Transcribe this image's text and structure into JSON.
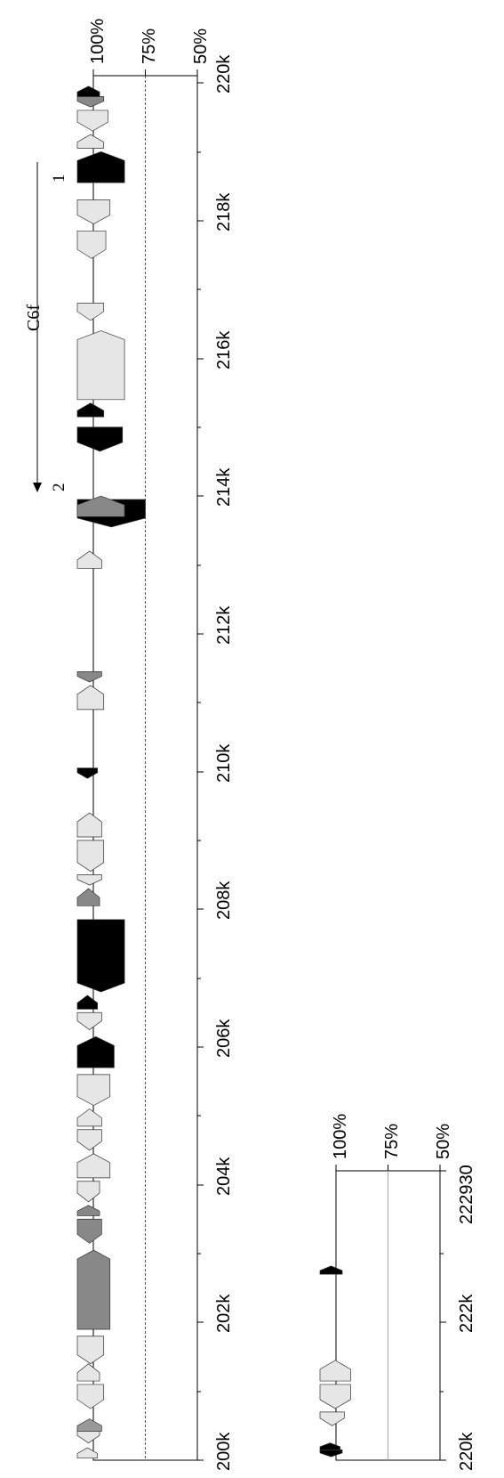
{
  "figure": {
    "main_panel": {
      "percent_ticks": [
        "100%",
        "75%",
        "50%"
      ],
      "position_ticks": [
        "200k",
        "202k",
        "204k",
        "206k",
        "208k",
        "210k",
        "212k",
        "214k",
        "216k",
        "218k",
        "220k"
      ],
      "cluster": {
        "name": "C6f",
        "start_marker": "1",
        "end_marker": "2"
      },
      "features": [
        {
          "pos_k": 200.03,
          "len_k": 0.15,
          "strand": "+",
          "color": "#e6e6e6",
          "level": 0.98
        },
        {
          "pos_k": 200.25,
          "len_k": 0.2,
          "strand": "-",
          "color": "#e6e6e6",
          "level": 0.97
        },
        {
          "pos_k": 200.42,
          "len_k": 0.18,
          "strand": "+",
          "color": "#999999",
          "level": 0.96
        },
        {
          "pos_k": 200.75,
          "len_k": 0.35,
          "strand": "-",
          "color": "#e6e6e6",
          "level": 0.95
        },
        {
          "pos_k": 201.15,
          "len_k": 0.25,
          "strand": "+",
          "color": "#e6e6e6",
          "level": 0.97
        },
        {
          "pos_k": 201.4,
          "len_k": 0.4,
          "strand": "-",
          "color": "#e6e6e6",
          "level": 0.95
        },
        {
          "pos_k": 201.9,
          "len_k": 1.15,
          "strand": "+",
          "color": "#888888",
          "level": 0.92
        },
        {
          "pos_k": 203.15,
          "len_k": 0.35,
          "strand": "-",
          "color": "#888888",
          "level": 0.96
        },
        {
          "pos_k": 203.55,
          "len_k": 0.15,
          "strand": "+",
          "color": "#888888",
          "level": 0.97
        },
        {
          "pos_k": 203.75,
          "len_k": 0.3,
          "strand": "-",
          "color": "#e6e6e6",
          "level": 0.97
        },
        {
          "pos_k": 204.1,
          "len_k": 0.35,
          "strand": "+",
          "color": "#e6e6e6",
          "level": 0.92
        },
        {
          "pos_k": 204.5,
          "len_k": 0.3,
          "strand": "-",
          "color": "#e6e6e6",
          "level": 0.96
        },
        {
          "pos_k": 204.85,
          "len_k": 0.25,
          "strand": "+",
          "color": "#e6e6e6",
          "level": 0.96
        },
        {
          "pos_k": 205.15,
          "len_k": 0.45,
          "strand": "-",
          "color": "#e6e6e6",
          "level": 0.92
        },
        {
          "pos_k": 205.7,
          "len_k": 0.45,
          "strand": "+",
          "color": "#000000",
          "level": 0.9
        },
        {
          "pos_k": 206.25,
          "len_k": 0.25,
          "strand": "-",
          "color": "#e6e6e6",
          "level": 0.96
        },
        {
          "pos_k": 206.55,
          "len_k": 0.2,
          "strand": "+",
          "color": "#000000",
          "level": 0.98
        },
        {
          "pos_k": 206.8,
          "len_k": 1.05,
          "strand": "-",
          "color": "#000000",
          "level": 0.85
        },
        {
          "pos_k": 208.05,
          "len_k": 0.25,
          "strand": "+",
          "color": "#888888",
          "level": 0.97
        },
        {
          "pos_k": 208.35,
          "len_k": 0.15,
          "strand": "-",
          "color": "#e6e6e6",
          "level": 0.96
        },
        {
          "pos_k": 208.55,
          "len_k": 0.45,
          "strand": "-",
          "color": "#e6e6e6",
          "level": 0.95
        },
        {
          "pos_k": 209.05,
          "len_k": 0.35,
          "strand": "+",
          "color": "#e6e6e6",
          "level": 0.96
        },
        {
          "pos_k": 209.9,
          "len_k": 0.15,
          "strand": "-",
          "color": "#000000",
          "level": 0.98
        },
        {
          "pos_k": 210.9,
          "len_k": 0.35,
          "strand": "+",
          "color": "#e6e6e6",
          "level": 0.95
        },
        {
          "pos_k": 211.3,
          "len_k": 0.15,
          "strand": "-",
          "color": "#888888",
          "level": 0.96
        },
        {
          "pos_k": 212.95,
          "len_k": 0.25,
          "strand": "+",
          "color": "#e6e6e6",
          "level": 0.96
        },
        {
          "pos_k": 213.55,
          "len_k": 0.4,
          "strand": "-",
          "color": "#000000",
          "level": 0.75
        },
        {
          "pos_k": 213.7,
          "len_k": 0.3,
          "strand": "+",
          "color": "#888888",
          "level": 0.85
        },
        {
          "pos_k": 214.65,
          "len_k": 0.35,
          "strand": "-",
          "color": "#000000",
          "level": 0.86
        },
        {
          "pos_k": 215.15,
          "len_k": 0.2,
          "strand": "+",
          "color": "#000000",
          "level": 0.95
        },
        {
          "pos_k": 215.4,
          "len_k": 1.0,
          "strand": "+",
          "color": "#e6e6e6",
          "level": 0.85
        },
        {
          "pos_k": 216.55,
          "len_k": 0.25,
          "strand": "-",
          "color": "#e6e6e6",
          "level": 0.95
        },
        {
          "pos_k": 217.45,
          "len_k": 0.4,
          "strand": "-",
          "color": "#e6e6e6",
          "level": 0.94
        },
        {
          "pos_k": 217.95,
          "len_k": 0.35,
          "strand": "-",
          "color": "#e6e6e6",
          "level": 0.92
        },
        {
          "pos_k": 218.55,
          "len_k": 0.45,
          "strand": "+",
          "color": "#000000",
          "level": 0.85
        },
        {
          "pos_k": 219.05,
          "len_k": 0.2,
          "strand": "+",
          "color": "#e6e6e6",
          "level": 0.95
        },
        {
          "pos_k": 219.3,
          "len_k": 0.3,
          "strand": "-",
          "color": "#e6e6e6",
          "level": 0.93
        },
        {
          "pos_k": 219.65,
          "len_k": 0.15,
          "strand": "-",
          "color": "#888888",
          "level": 0.95
        },
        {
          "pos_k": 219.8,
          "len_k": 0.15,
          "strand": "+",
          "color": "#000000",
          "level": 0.97
        }
      ]
    },
    "inset_panel": {
      "percent_ticks": [
        "100%",
        "75%",
        "50%"
      ],
      "position_ticks": [
        "220k",
        "222k"
      ],
      "end_label": "222930",
      "features": [
        {
          "pos_k": 220.05,
          "len_k": 0.1,
          "strand": "-",
          "color": "#000000",
          "level": 0.97
        },
        {
          "pos_k": 220.15,
          "len_k": 0.1,
          "strand": "+",
          "color": "#000000",
          "level": 0.98
        },
        {
          "pos_k": 220.5,
          "len_k": 0.2,
          "strand": "-",
          "color": "#e6e6e6",
          "level": 0.96
        },
        {
          "pos_k": 220.75,
          "len_k": 0.35,
          "strand": "-",
          "color": "#e6e6e6",
          "level": 0.93
        },
        {
          "pos_k": 221.15,
          "len_k": 0.3,
          "strand": "+",
          "color": "#e6e6e6",
          "level": 0.93
        },
        {
          "pos_k": 222.7,
          "len_k": 0.12,
          "strand": "+",
          "color": "#000000",
          "level": 0.97
        }
      ]
    }
  }
}
